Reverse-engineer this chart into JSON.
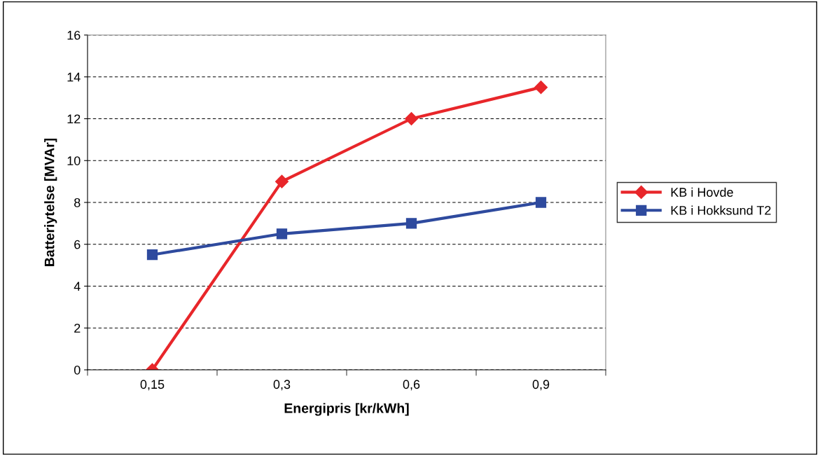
{
  "chart_data": {
    "type": "line",
    "xlabel": "Energipris [kr/kWh]",
    "ylabel": "Batteriytelse [MVAr]",
    "categories": [
      "0,15",
      "0,3",
      "0,6",
      "0,9"
    ],
    "series": [
      {
        "name": "KB i Hovde",
        "color": "#e8262a",
        "marker": "diamond",
        "values": [
          0,
          9,
          12,
          13.5
        ]
      },
      {
        "name": "KB i Hokksund T2",
        "color": "#2e4a9e",
        "marker": "square",
        "values": [
          5.5,
          6.5,
          7,
          8
        ]
      }
    ],
    "ylim": [
      0,
      16
    ],
    "yticks": [
      0,
      2,
      4,
      6,
      8,
      10,
      12,
      14,
      16
    ],
    "grid": "y",
    "legend": "right",
    "line_style": "solid"
  }
}
